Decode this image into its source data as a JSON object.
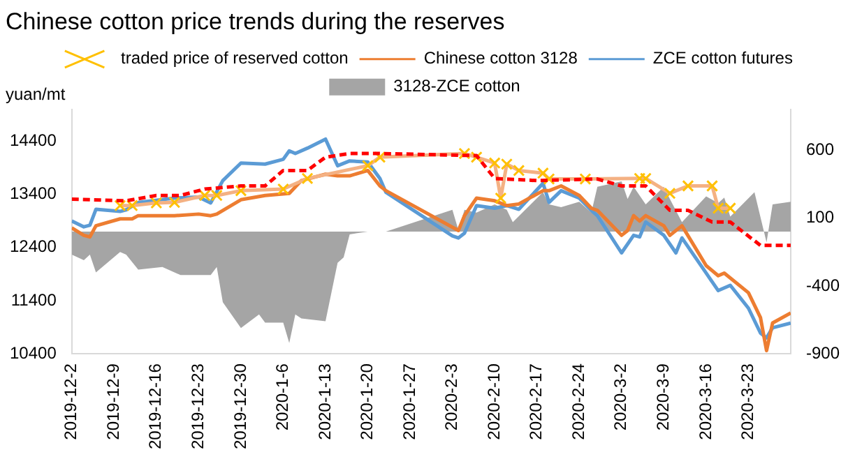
{
  "chart_data": {
    "type": "line",
    "title": "Chinese cotton price trends during the reserves",
    "ylabel": "yuan/mt",
    "xlim": [
      "2019-12-02",
      "2020-03-30"
    ],
    "xticks": [
      {
        "value": "2019-12-02",
        "label": "2019-12-2"
      },
      {
        "value": "2019-12-09",
        "label": "2019-12-9"
      },
      {
        "value": "2019-12-16",
        "label": "2019-12-16"
      },
      {
        "value": "2019-12-23",
        "label": "2019-12-23"
      },
      {
        "value": "2019-12-30",
        "label": "2019-12-30"
      },
      {
        "value": "2020-01-06",
        "label": "2020-1-6"
      },
      {
        "value": "2020-01-13",
        "label": "2020-1-13"
      },
      {
        "value": "2020-01-20",
        "label": "2020-1-20"
      },
      {
        "value": "2020-01-27",
        "label": "2020-1-27"
      },
      {
        "value": "2020-02-03",
        "label": "2020-2-3"
      },
      {
        "value": "2020-02-10",
        "label": "2020-2-10"
      },
      {
        "value": "2020-02-17",
        "label": "2020-2-17"
      },
      {
        "value": "2020-02-24",
        "label": "2020-2-24"
      },
      {
        "value": "2020-03-02",
        "label": "2020-3-2"
      },
      {
        "value": "2020-03-09",
        "label": "2020-3-9"
      },
      {
        "value": "2020-03-16",
        "label": "2020-3-16"
      },
      {
        "value": "2020-03-23",
        "label": "2020-3-23"
      }
    ],
    "ylim": [
      10400,
      15000
    ],
    "yticks": [
      10400,
      11400,
      12400,
      13400,
      14400
    ],
    "y2lim": [
      -900,
      900
    ],
    "y2ticks": [
      -900,
      -400,
      100,
      600
    ],
    "grid": false,
    "legend": "top",
    "marker": "none",
    "series": [
      {
        "name": "3128-ZCE cotton",
        "type": "area",
        "axis": "y2",
        "color": "#a5a5a5",
        "x": [
          "2019-12-02",
          "2019-12-04",
          "2019-12-05",
          "2019-12-06",
          "2019-12-10",
          "2019-12-11",
          "2019-12-13",
          "2019-12-17",
          "2019-12-19",
          "2019-12-20",
          "2019-12-25",
          "2019-12-26",
          "2019-12-27",
          "2019-12-30",
          "2020-01-02",
          "2020-01-03",
          "2020-01-06",
          "2020-01-07",
          "2020-01-08",
          "2020-01-09",
          "2020-01-13",
          "2020-01-15",
          "2020-01-16",
          "2020-01-17",
          "2020-01-20",
          "2020-01-23",
          "2020-02-03",
          "2020-02-04",
          "2020-02-05",
          "2020-02-07",
          "2020-02-10",
          "2020-02-12",
          "2020-02-13",
          "2020-02-18",
          "2020-02-19",
          "2020-02-21",
          "2020-02-24",
          "2020-02-26",
          "2020-02-27",
          "2020-03-02",
          "2020-03-03",
          "2020-03-04",
          "2020-03-06",
          "2020-03-09",
          "2020-03-10",
          "2020-03-12",
          "2020-03-16",
          "2020-03-18",
          "2020-03-19",
          "2020-03-20",
          "2020-03-24",
          "2020-03-26",
          "2020-03-27",
          "2020-03-30"
        ],
        "values": [
          -170,
          -210,
          -170,
          -300,
          -150,
          -170,
          -280,
          -260,
          -300,
          -320,
          -320,
          -260,
          -520,
          -710,
          -610,
          -670,
          -670,
          -820,
          -610,
          -640,
          -660,
          -230,
          -190,
          -20,
          0,
          0,
          160,
          10,
          160,
          140,
          200,
          160,
          70,
          290,
          200,
          180,
          220,
          140,
          330,
          370,
          240,
          330,
          200,
          330,
          240,
          70,
          260,
          210,
          250,
          110,
          290,
          -80,
          200,
          220
        ]
      },
      {
        "name": "ZCE cotton futures",
        "color": "#5b9bd5",
        "x": [
          "2019-12-02",
          "2019-12-04",
          "2019-12-05",
          "2019-12-06",
          "2019-12-10",
          "2019-12-11",
          "2019-12-13",
          "2019-12-19",
          "2019-12-23",
          "2019-12-25",
          "2019-12-27",
          "2019-12-30",
          "2020-01-03",
          "2020-01-06",
          "2020-01-07",
          "2020-01-08",
          "2020-01-10",
          "2020-01-13",
          "2020-01-15",
          "2020-01-17",
          "2020-01-20",
          "2020-01-22",
          "2020-01-23",
          "2020-02-03",
          "2020-02-04",
          "2020-02-05",
          "2020-02-07",
          "2020-02-10",
          "2020-02-12",
          "2020-02-14",
          "2020-02-18",
          "2020-02-19",
          "2020-02-21",
          "2020-02-24",
          "2020-02-26",
          "2020-02-27",
          "2020-03-02",
          "2020-03-04",
          "2020-03-05",
          "2020-03-06",
          "2020-03-09",
          "2020-03-11",
          "2020-03-12",
          "2020-03-16",
          "2020-03-18",
          "2020-03-20",
          "2020-03-23",
          "2020-03-25",
          "2020-03-26",
          "2020-03-27",
          "2020-03-30"
        ],
        "values": [
          12900,
          12790,
          12820,
          13120,
          13080,
          13110,
          13250,
          13330,
          13350,
          13240,
          13660,
          13990,
          13970,
          14060,
          14220,
          14170,
          14270,
          14440,
          13940,
          14030,
          14010,
          13700,
          13440,
          12620,
          12580,
          12670,
          13190,
          13140,
          13190,
          13120,
          13610,
          13250,
          13470,
          13330,
          13100,
          13000,
          12300,
          12630,
          12600,
          12880,
          12630,
          12300,
          12580,
          11920,
          11590,
          11690,
          11260,
          10790,
          10700,
          10890,
          10980
        ]
      },
      {
        "name": "Chinese cotton 3128",
        "color": "#ed7d31",
        "x": [
          "2019-12-02",
          "2019-12-04",
          "2019-12-05",
          "2019-12-06",
          "2019-12-10",
          "2019-12-12",
          "2019-12-13",
          "2019-12-19",
          "2019-12-23",
          "2019-12-25",
          "2019-12-26",
          "2019-12-30",
          "2020-01-03",
          "2020-01-07",
          "2020-01-09",
          "2020-01-13",
          "2020-01-15",
          "2020-01-17",
          "2020-01-20",
          "2020-01-22",
          "2020-01-23",
          "2020-02-04",
          "2020-02-05",
          "2020-02-07",
          "2020-02-10",
          "2020-02-12",
          "2020-02-14",
          "2020-02-18",
          "2020-02-19",
          "2020-02-21",
          "2020-02-24",
          "2020-02-26",
          "2020-02-27",
          "2020-03-02",
          "2020-03-03",
          "2020-03-04",
          "2020-03-05",
          "2020-03-06",
          "2020-03-09",
          "2020-03-10",
          "2020-03-12",
          "2020-03-16",
          "2020-03-18",
          "2020-03-19",
          "2020-03-23",
          "2020-03-25",
          "2020-03-26",
          "2020-03-27",
          "2020-03-30"
        ],
        "values": [
          12770,
          12630,
          12600,
          12810,
          12940,
          12940,
          13000,
          13000,
          13030,
          13000,
          13030,
          13300,
          13380,
          13420,
          13660,
          13780,
          13750,
          13750,
          13850,
          13560,
          13470,
          12720,
          13000,
          13330,
          13280,
          13190,
          13220,
          13470,
          13470,
          13560,
          13380,
          13140,
          13100,
          12630,
          12720,
          13000,
          12900,
          13000,
          12810,
          12630,
          12810,
          12060,
          11870,
          11920,
          11550,
          11080,
          10460,
          10980,
          11170
        ]
      },
      {
        "name": "traded price of reserved cotton",
        "color": "#f4b183",
        "marker": "cross",
        "x": [
          "2019-12-10",
          "2019-12-12",
          "2019-12-16",
          "2019-12-19",
          "2019-12-24",
          "2019-12-26",
          "2019-12-30",
          "2020-01-06",
          "2020-01-10",
          "2020-01-20",
          "2020-01-22",
          "2020-02-05",
          "2020-02-07",
          "2020-02-10",
          "2020-02-11",
          "2020-02-12",
          "2020-02-14",
          "2020-02-18",
          "2020-02-19",
          "2020-02-25",
          "2020-03-05",
          "2020-03-06",
          "2020-03-10",
          "2020-03-13",
          "2020-03-17",
          "2020-03-18",
          "2020-03-20"
        ],
        "values": [
          13190,
          13190,
          13240,
          13250,
          13380,
          13380,
          13470,
          13500,
          13700,
          13940,
          14100,
          14170,
          14100,
          13990,
          13330,
          13970,
          13850,
          13800,
          13690,
          13690,
          13700,
          13700,
          13420,
          13560,
          13560,
          13140,
          13140
        ],
        "colors": [
          "#ffc000",
          "#ffc000",
          "#ffc000",
          "#ffc000",
          "#ffc000",
          "#ffc000",
          "#ffc000",
          "#ffc000",
          "#ffc000",
          "#ffc000",
          "#ffc000",
          "#ffc000",
          "#ffc000",
          "#ffc000",
          "#ffc000",
          "#ffc000",
          "#ffc000",
          "#ffc000",
          "#ffc000",
          "#ffc000",
          "#ffc000",
          "#ffc000",
          "#ffc000",
          "#ffc000",
          "#ffc000",
          "#ffc000",
          "#ffc000"
        ]
      },
      {
        "color": "#ff0000",
        "line_style": "dashed",
        "x": [
          "2019-12-02",
          "2019-12-11",
          "2019-12-16",
          "2019-12-20",
          "2019-12-24",
          "2019-12-30",
          "2020-01-03",
          "2020-01-06",
          "2020-01-10",
          "2020-01-13",
          "2020-01-17",
          "2020-01-22",
          "2020-02-07",
          "2020-02-10",
          "2020-02-17",
          "2020-02-27",
          "2020-03-02",
          "2020-03-06",
          "2020-03-10",
          "2020-03-13",
          "2020-03-17",
          "2020-03-20",
          "2020-03-25",
          "2020-03-30"
        ],
        "values": [
          13310,
          13280,
          13380,
          13380,
          13500,
          13560,
          13560,
          13850,
          13850,
          14100,
          14170,
          14170,
          14130,
          13700,
          13660,
          13690,
          13560,
          13560,
          13100,
          13100,
          12880,
          12880,
          12440,
          12440
        ]
      }
    ]
  }
}
